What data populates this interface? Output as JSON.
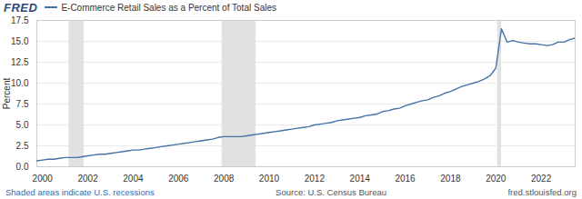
{
  "chart_data": {
    "type": "line",
    "logo": "FRED",
    "ylabel": "Percent",
    "note": "Shaded areas indicate U.S. recessions",
    "source": "Source: U.S. Census Bureau",
    "credit": "fred.stlouisfed.org",
    "x": [
      1999.75,
      2000.0,
      2000.25,
      2000.5,
      2000.75,
      2001.0,
      2001.25,
      2001.5,
      2001.75,
      2002.0,
      2002.25,
      2002.5,
      2002.75,
      2003.0,
      2003.25,
      2003.5,
      2003.75,
      2004.0,
      2004.25,
      2004.5,
      2004.75,
      2005.0,
      2005.25,
      2005.5,
      2005.75,
      2006.0,
      2006.25,
      2006.5,
      2006.75,
      2007.0,
      2007.25,
      2007.5,
      2007.75,
      2008.0,
      2008.25,
      2008.5,
      2008.75,
      2009.0,
      2009.25,
      2009.5,
      2009.75,
      2010.0,
      2010.25,
      2010.5,
      2010.75,
      2011.0,
      2011.25,
      2011.5,
      2011.75,
      2012.0,
      2012.25,
      2012.5,
      2012.75,
      2013.0,
      2013.25,
      2013.5,
      2013.75,
      2014.0,
      2014.25,
      2014.5,
      2014.75,
      2015.0,
      2015.25,
      2015.5,
      2015.75,
      2016.0,
      2016.25,
      2016.5,
      2016.75,
      2017.0,
      2017.25,
      2017.5,
      2017.75,
      2018.0,
      2018.25,
      2018.5,
      2018.75,
      2019.0,
      2019.25,
      2019.5,
      2019.75,
      2020.0,
      2020.25,
      2020.5,
      2020.75,
      2021.0,
      2021.25,
      2021.5,
      2021.75,
      2022.0,
      2022.25,
      2022.5,
      2022.75,
      2023.0,
      2023.25,
      2023.5
    ],
    "series": [
      {
        "name": "E-Commerce Retail Sales as a Percent of Total Sales",
        "color": "#4572a7",
        "values": [
          0.7,
          0.8,
          0.9,
          0.9,
          1.0,
          1.1,
          1.1,
          1.1,
          1.2,
          1.3,
          1.4,
          1.5,
          1.5,
          1.6,
          1.7,
          1.8,
          1.9,
          2.0,
          2.0,
          2.1,
          2.2,
          2.3,
          2.4,
          2.5,
          2.6,
          2.7,
          2.8,
          2.9,
          3.0,
          3.1,
          3.2,
          3.3,
          3.5,
          3.6,
          3.6,
          3.6,
          3.6,
          3.7,
          3.8,
          3.9,
          4.0,
          4.1,
          4.2,
          4.3,
          4.4,
          4.5,
          4.6,
          4.7,
          4.8,
          5.0,
          5.1,
          5.2,
          5.3,
          5.5,
          5.6,
          5.7,
          5.8,
          5.9,
          6.1,
          6.2,
          6.3,
          6.6,
          6.7,
          6.9,
          7.0,
          7.3,
          7.5,
          7.7,
          7.9,
          8.0,
          8.3,
          8.5,
          8.8,
          9.0,
          9.3,
          9.6,
          9.8,
          10.0,
          10.2,
          10.5,
          10.9,
          11.8,
          16.5,
          14.9,
          15.1,
          14.9,
          14.8,
          14.7,
          14.7,
          14.6,
          14.5,
          14.6,
          14.9,
          14.9,
          15.2,
          15.4
        ]
      }
    ],
    "recessions": [
      [
        2001.17,
        2001.83
      ],
      [
        2007.92,
        2009.42
      ],
      [
        2020.08,
        2020.25
      ]
    ],
    "xlim": [
      1999.75,
      2023.5
    ],
    "xticks": [
      2000,
      2002,
      2004,
      2006,
      2008,
      2010,
      2012,
      2014,
      2016,
      2018,
      2020,
      2022
    ],
    "ylim": [
      0,
      17.5
    ],
    "yticks": [
      {
        "value": 0,
        "label": "0.0"
      },
      2.5,
      {
        "value": 5,
        "label": "5.0"
      },
      7.5,
      {
        "value": 10,
        "label": "10.0"
      },
      12.5,
      {
        "value": 15,
        "label": "15.0"
      },
      17.5
    ],
    "grid": true
  }
}
